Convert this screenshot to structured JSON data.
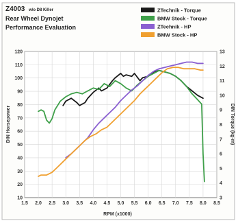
{
  "chart_data": {
    "type": "line",
    "title": "Z4003",
    "title_note": "w/o D8 Killer",
    "subtitle_line1": "Rear Wheel Dynojet",
    "subtitle_line2": "Performance Evaluation",
    "xlabel": "RPM (x1000)",
    "ylabel_left": "DIN Horsepower",
    "ylabel_right": "DIN Torque (kg-m)",
    "xlim": [
      1.5,
      8.5
    ],
    "ylim_left": [
      10,
      120
    ],
    "ylim_right": [
      3,
      13
    ],
    "x_ticks": [
      "1.5",
      "2.0",
      "2.5",
      "3.0",
      "3.5",
      "4.0",
      "4.5",
      "5.0",
      "5.5",
      "6.0",
      "6.5",
      "7.0",
      "7.5",
      "8.0",
      "8.5"
    ],
    "x_tick_values": [
      1.5,
      2.0,
      2.5,
      3.0,
      3.5,
      4.0,
      4.5,
      5.0,
      5.5,
      6.0,
      6.5,
      7.0,
      7.5,
      8.0,
      8.5
    ],
    "y_left_ticks": [
      "10",
      "20",
      "30",
      "40",
      "50",
      "60",
      "70",
      "80",
      "90",
      "100",
      "110",
      "120"
    ],
    "y_left_values": [
      10,
      20,
      30,
      40,
      50,
      60,
      70,
      80,
      90,
      100,
      110,
      120
    ],
    "y_right_ticks": [
      "3",
      "4",
      "5",
      "6",
      "7",
      "8",
      "9",
      "10",
      "11",
      "12",
      "13"
    ],
    "y_right_values": [
      3,
      4,
      5,
      6,
      7,
      8,
      9,
      10,
      11,
      12,
      13
    ],
    "grid": true,
    "legend_position": "top-right",
    "series": [
      {
        "name": "ZTechnik - Torque",
        "axis": "right",
        "color": "#1a1a1a",
        "x": [
          2.9,
          3.0,
          3.2,
          3.4,
          3.5,
          3.7,
          3.8,
          4.0,
          4.2,
          4.3,
          4.5,
          4.7,
          4.8,
          5.0,
          5.1,
          5.2,
          5.4,
          5.5,
          5.7,
          5.8,
          6.0,
          6.2,
          6.4,
          6.6,
          6.8,
          7.0,
          7.2,
          7.4,
          7.6,
          7.8,
          8.0
        ],
        "y": [
          9.3,
          9.6,
          9.8,
          9.5,
          9.3,
          9.5,
          9.8,
          10.2,
          10.5,
          10.3,
          10.5,
          11.0,
          11.2,
          11.5,
          11.3,
          11.4,
          11.3,
          11.5,
          11.0,
          11.2,
          11.3,
          11.6,
          11.7,
          11.6,
          11.5,
          11.3,
          11.0,
          10.6,
          10.3,
          10.0,
          9.8
        ]
      },
      {
        "name": "BMW Stock - Torque",
        "axis": "right",
        "color": "#3fa04a",
        "x": [
          2.0,
          2.1,
          2.2,
          2.3,
          2.4,
          2.5,
          2.6,
          2.8,
          3.0,
          3.2,
          3.4,
          3.6,
          3.8,
          4.0,
          4.2,
          4.4,
          4.6,
          4.8,
          5.0,
          5.2,
          5.4,
          5.6,
          5.8,
          6.0,
          6.2,
          6.4,
          6.6,
          6.8,
          7.0,
          7.2,
          7.4,
          7.6,
          7.8,
          7.95,
          8.0,
          8.05
        ],
        "y": [
          8.9,
          9.0,
          8.9,
          8.3,
          8.1,
          8.4,
          9.0,
          9.6,
          9.9,
          10.1,
          10.2,
          10.1,
          10.3,
          10.5,
          10.4,
          10.8,
          10.6,
          11.0,
          10.8,
          10.5,
          10.3,
          10.7,
          11.0,
          11.3,
          11.5,
          11.7,
          11.6,
          11.5,
          11.3,
          11.0,
          10.6,
          10.1,
          9.7,
          9.4,
          6.0,
          4.1
        ]
      },
      {
        "name": "ZTechnik - HP",
        "axis": "left",
        "color": "#8a5fd1",
        "x": [
          3.0,
          3.2,
          3.4,
          3.6,
          3.8,
          4.0,
          4.2,
          4.4,
          4.6,
          4.8,
          5.0,
          5.2,
          5.4,
          5.6,
          5.8,
          6.0,
          6.2,
          6.4,
          6.6,
          6.8,
          7.0,
          7.2,
          7.4,
          7.6,
          7.8,
          8.0
        ],
        "y": [
          40,
          43,
          47,
          51,
          55,
          61,
          66,
          70,
          74,
          78,
          83,
          87,
          91,
          94,
          98,
          102,
          105,
          107,
          108,
          109,
          110,
          111,
          112,
          112,
          111,
          111
        ]
      },
      {
        "name": "BMW Stock - HP",
        "axis": "left",
        "color": "#f0a030",
        "x": [
          2.0,
          2.1,
          2.3,
          2.5,
          2.7,
          2.9,
          3.1,
          3.3,
          3.5,
          3.7,
          3.9,
          4.1,
          4.3,
          4.5,
          4.7,
          4.9,
          5.1,
          5.3,
          5.5,
          5.7,
          5.9,
          6.1,
          6.3,
          6.5,
          6.7,
          6.9,
          7.1,
          7.3,
          7.5,
          7.7,
          7.9,
          8.0
        ],
        "y": [
          26,
          27,
          27,
          29,
          33,
          37,
          41,
          45,
          49,
          53,
          56,
          58,
          61,
          63,
          67,
          71,
          75,
          79,
          83,
          88,
          92,
          96,
          100,
          104,
          107,
          108,
          108,
          107,
          107,
          107,
          106,
          106
        ]
      }
    ]
  }
}
